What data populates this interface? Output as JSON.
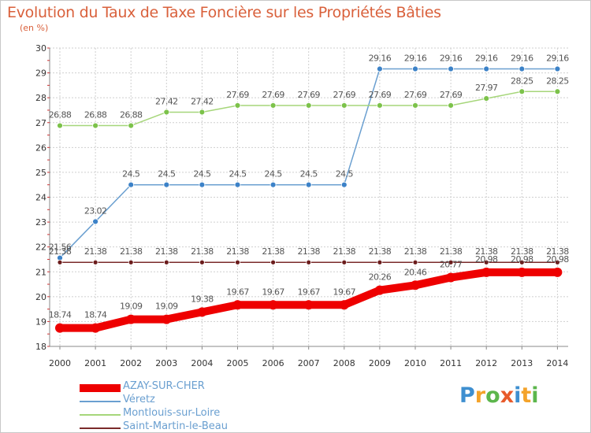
{
  "title": "Evolution du Taux de Taxe Foncière sur les Propriétés Bâties",
  "subtitle": "(en %)",
  "logo": {
    "text": "Proxiti",
    "colors": [
      "#3e8fd0",
      "#f4a32a",
      "#5cb64c",
      "#e85a2a",
      "#3e8fd0",
      "#f4a32a",
      "#5cb64c"
    ]
  },
  "chart_data": {
    "type": "line",
    "title": "Evolution du Taux de Taxe Foncière sur les Propriétés Bâties",
    "ylabel": "(en %)",
    "xlabel": "",
    "x": [
      "2000",
      "2001",
      "2002",
      "2003",
      "2004",
      "2005",
      "2006",
      "2007",
      "2008",
      "2009",
      "2010",
      "2011",
      "2012",
      "2013",
      "2014"
    ],
    "ylim": [
      18,
      30
    ],
    "yticks": [
      "18",
      "19",
      "20",
      "21",
      "22",
      "23",
      "24",
      "25",
      "26",
      "27",
      "28",
      "29",
      "30"
    ],
    "grid": true,
    "legend_position": "bottom-left",
    "series": [
      {
        "name": "Véretz",
        "color": "#6a9fd0",
        "marker_color": "#3c82c8",
        "values": [
          21.56,
          23.02,
          24.5,
          24.5,
          24.5,
          24.5,
          24.5,
          24.5,
          24.5,
          29.16,
          29.16,
          29.16,
          29.16,
          29.16,
          29.16
        ],
        "labels": [
          "21.56",
          "23.02",
          "24.5",
          "24.5",
          "24.5",
          "24.5",
          "24.5",
          "24.5",
          "24.5",
          "29.16",
          "29.16",
          "29.16",
          "29.16",
          "29.16",
          "29.16"
        ]
      },
      {
        "name": "Montlouis-sur-Loire",
        "color": "#a6d67a",
        "marker_color": "#7cc24a",
        "values": [
          26.88,
          26.88,
          26.88,
          27.42,
          27.42,
          27.69,
          27.69,
          27.69,
          27.69,
          27.69,
          27.69,
          27.69,
          27.97,
          28.25,
          28.25
        ],
        "labels": [
          "26.88",
          "26.88",
          "26.88",
          "27.42",
          "27.42",
          "27.69",
          "27.69",
          "27.69",
          "27.69",
          "27.69",
          "27.69",
          "27.69",
          "27.97",
          "28.25",
          "28.25"
        ]
      },
      {
        "name": "Saint-Martin-le-Beau",
        "color": "#7a2a2a",
        "marker_color": "#6b1c1c",
        "values": [
          21.38,
          21.38,
          21.38,
          21.38,
          21.38,
          21.38,
          21.38,
          21.38,
          21.38,
          21.38,
          21.38,
          21.38,
          21.38,
          21.38,
          21.38
        ],
        "labels": [
          "21.38",
          "21.38",
          "21.38",
          "21.38",
          "21.38",
          "21.38",
          "21.38",
          "21.38",
          "21.38",
          "21.38",
          "21.38",
          "21.38",
          "21.38",
          "21.38",
          "21.38"
        ]
      },
      {
        "name": "AZAY-SUR-CHER",
        "color": "#ee0000",
        "marker_color": "#ee0000",
        "values": [
          18.74,
          18.74,
          19.09,
          19.09,
          19.38,
          19.67,
          19.67,
          19.67,
          19.67,
          20.26,
          20.46,
          20.77,
          20.98,
          20.98,
          20.98
        ],
        "labels": [
          "18.74",
          "18.74",
          "19.09",
          "19.09",
          "19.38",
          "19.67",
          "19.67",
          "19.67",
          "19.67",
          "20.26",
          "20.46",
          "20.77",
          "20.98",
          "20.98",
          "20.98"
        ]
      }
    ],
    "legend": [
      "AZAY-SUR-CHER",
      "Véretz",
      "Montlouis-sur-Loire",
      "Saint-Martin-le-Beau"
    ]
  }
}
